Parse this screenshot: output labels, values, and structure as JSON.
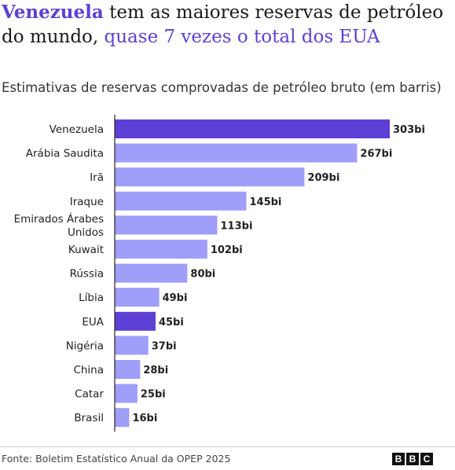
{
  "title": {
    "part1": "Venezuela",
    "part2": " tem as maiores reservas de petróleo do mundo, ",
    "part3": "quase 7 vezes o total dos EUA"
  },
  "subtitle": "Estimativas de reservas comprovadas de petróleo bruto (em barris)",
  "source": "Fonte: Boletim Estatístico Anual da OPEP 2025",
  "logo": [
    "B",
    "B",
    "C"
  ],
  "colors": {
    "highlight": "#5e3fd6",
    "bar": "#a09ef9",
    "axis": "#222222",
    "title_highlight": "#5e3fd6"
  },
  "chart_data": {
    "type": "bar",
    "orientation": "horizontal",
    "unit": "bi",
    "categories": [
      [
        "Venezuela"
      ],
      [
        "Arábia Saudita"
      ],
      [
        "Irã"
      ],
      [
        "Iraque"
      ],
      [
        "Emirados Árabes",
        "Unidos"
      ],
      [
        "Kuwait"
      ],
      [
        "Rússia"
      ],
      [
        "Líbia"
      ],
      [
        "EUA"
      ],
      [
        "Nigéria"
      ],
      [
        "China"
      ],
      [
        "Catar"
      ],
      [
        "Brasil"
      ]
    ],
    "values": [
      303,
      267,
      209,
      145,
      113,
      102,
      80,
      49,
      45,
      37,
      28,
      25,
      16
    ],
    "value_labels": [
      "303bi",
      "267bi",
      "209bi",
      "145bi",
      "113bi",
      "102bi",
      "80bi",
      "49bi",
      "45bi",
      "37bi",
      "28bi",
      "25bi",
      "16bi"
    ],
    "highlighted": [
      "Venezuela",
      "EUA"
    ],
    "xlim": [
      0,
      303
    ],
    "grid": false
  }
}
